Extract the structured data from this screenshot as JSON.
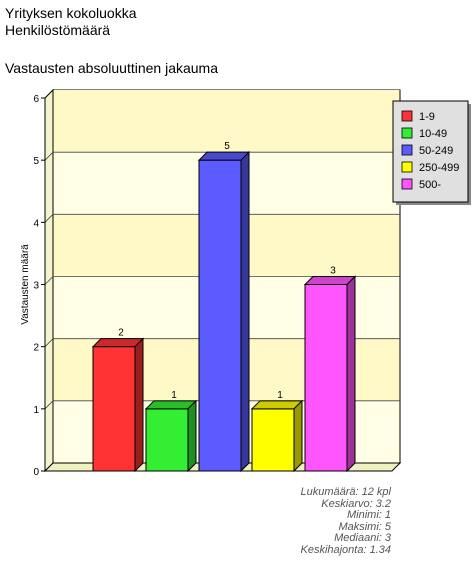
{
  "header": {
    "line1": "Yrityksen kokoluokka",
    "line2": "Henkilöstömäärä",
    "subtitle": "Vastausten absoluuttinen jakauma"
  },
  "chart_data": {
    "type": "bar",
    "title": "Vastausten absoluuttinen jakauma",
    "xlabel": "",
    "ylabel": "Vastausten määrä",
    "ylim": [
      0,
      6
    ],
    "yticks": [
      0,
      1,
      2,
      3,
      4,
      5,
      6
    ],
    "grid": true,
    "legend_position": "top-right",
    "categories": [
      "1-9",
      "10-49",
      "50-249",
      "250-499",
      "500-"
    ],
    "values": [
      2,
      1,
      5,
      1,
      3
    ],
    "colors": [
      "#ff3333",
      "#33ee33",
      "#5b5bff",
      "#ffff00",
      "#ff55ff"
    ]
  },
  "stats": [
    "Lukumäärä: 12 kpl",
    "Keskiarvo: 3.2",
    "Minimi: 1",
    "Maksimi: 5",
    "Mediaani: 3",
    "Keskihajonta: 1.34"
  ]
}
